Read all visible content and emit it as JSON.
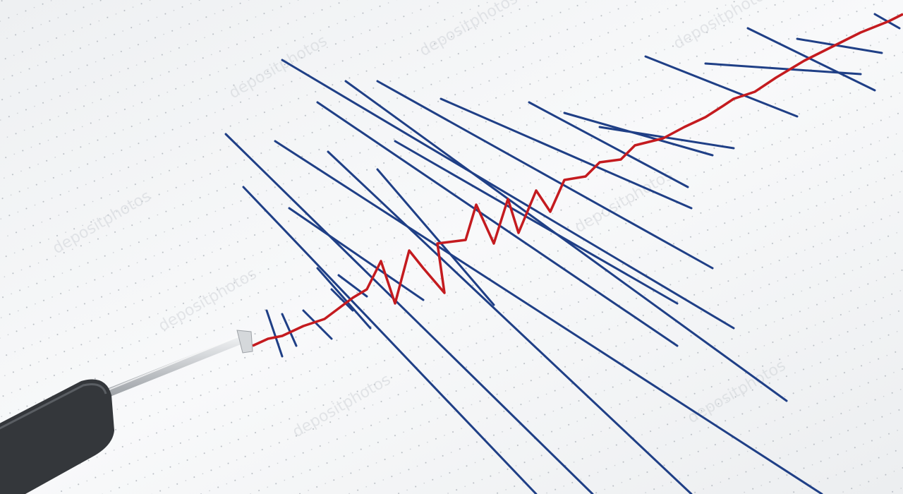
{
  "image": {
    "subject": "seismograph",
    "watermark": "depositphotos",
    "colors": {
      "paper": "#f4f5f6",
      "grid_dots": "#b7bcc2",
      "seismic_lines": "#1f3f86",
      "center_trace": "#c41b1f",
      "stylus_rod": "#c7cacd",
      "stylus_body": "#34373b"
    }
  }
}
